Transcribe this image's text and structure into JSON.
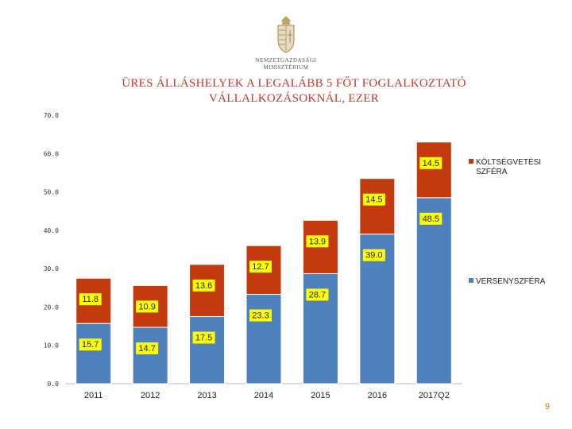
{
  "logo": {
    "line1": "NEMZETGAZDASÁGI",
    "line2": "MINISZTÉRIUM"
  },
  "page_number": "9",
  "colors": {
    "verseny": "#4f81bd",
    "koltseg": "#c23a0d",
    "label_bg": "#ffff00"
  },
  "chart_data": {
    "type": "bar",
    "stacked": true,
    "title": "ÜRES ÁLLÁSHELYEK A LEGALÁBB 5 FŐT FOGLALKOZTATÓ VÁLLALKOZÁSOKNÁL, EZER",
    "title_lines": [
      "ÜRES ÁLLÁSHELYEK A LEGALÁBB 5 FŐT FOGLALKOZTATÓ",
      "VÁLLALKOZÁSOKNÁL, EZER"
    ],
    "categories": [
      "2011",
      "2012",
      "2013",
      "2014",
      "2015",
      "2016",
      "2017Q2"
    ],
    "series": [
      {
        "name": "VERSENYSZFÉRA",
        "values": [
          15.7,
          14.7,
          17.5,
          23.3,
          28.7,
          39.0,
          48.5
        ]
      },
      {
        "name": "KÖLTSÉGVETÉSI SZFÉRA",
        "values": [
          11.8,
          10.9,
          13.6,
          12.7,
          13.9,
          14.5,
          14.5
        ]
      }
    ],
    "value_labels": {
      "VERSENYSZFÉRA": [
        "15.7",
        "14.7",
        "17.5",
        "23.3",
        "28.7",
        "39.0",
        "48.5"
      ],
      "KÖLTSÉGVETÉSI SZFÉRA": [
        "11.8",
        "10.9",
        "13.6",
        "12.7",
        "13.9",
        "14.5",
        "14.5"
      ]
    },
    "legend": [
      {
        "label_lines": [
          "KÖLTSÉGVETÉSI",
          "SZFÉRA"
        ]
      },
      {
        "label_lines": [
          "VERSENYSZFÉRA"
        ]
      }
    ],
    "y_ticks": [
      "0.0",
      "10.0",
      "20.0",
      "30.0",
      "40.0",
      "50.0",
      "60.0",
      "70.0"
    ],
    "ylim": [
      0,
      70
    ],
    "xlabel": "",
    "ylabel": "",
    "grid": false,
    "legend_position": "right"
  }
}
